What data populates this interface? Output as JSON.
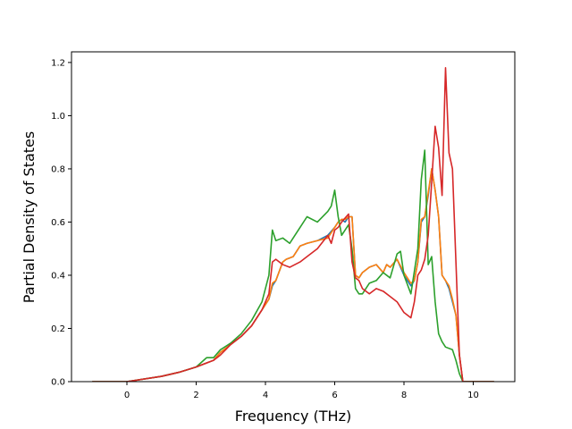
{
  "chart_data": {
    "type": "line",
    "xlabel": "Frequency (THz)",
    "ylabel": "Partial Density of States",
    "xlim": [
      -1.6,
      11.2
    ],
    "ylim": [
      0.0,
      1.24
    ],
    "xticks": [
      0,
      2,
      4,
      6,
      8,
      10
    ],
    "xtick_labels": [
      "0",
      "2",
      "4",
      "6",
      "8",
      "10"
    ],
    "yticks": [
      0.0,
      0.2,
      0.4,
      0.6,
      0.8,
      1.0,
      1.2
    ],
    "ytick_labels": [
      "0.0",
      "0.2",
      "0.4",
      "0.6",
      "0.8",
      "1.0",
      "1.2"
    ],
    "grid": false,
    "series": [
      {
        "color": "#1f77b4",
        "x": [
          -1.0,
          0.0,
          1.0,
          1.5,
          2.0,
          2.3,
          2.5,
          2.7,
          3.0,
          3.3,
          3.6,
          3.9,
          4.1,
          4.2,
          4.3,
          4.5,
          4.6,
          4.8,
          5.0,
          5.2,
          5.5,
          5.8,
          6.0,
          6.1,
          6.2,
          6.3,
          6.4,
          6.5,
          6.6,
          6.7,
          6.8,
          7.0,
          7.2,
          7.4,
          7.5,
          7.6,
          7.8,
          8.0,
          8.2,
          8.3,
          8.4,
          8.5,
          8.6,
          8.7,
          8.8,
          8.9,
          9.0,
          9.1,
          9.2,
          9.3,
          9.4,
          9.5,
          9.6,
          9.7,
          9.8,
          10.6
        ],
        "y": [
          0.0,
          0.0,
          0.02,
          0.035,
          0.055,
          0.07,
          0.08,
          0.11,
          0.14,
          0.17,
          0.21,
          0.27,
          0.31,
          0.36,
          0.38,
          0.45,
          0.46,
          0.47,
          0.51,
          0.52,
          0.53,
          0.55,
          0.58,
          0.6,
          0.61,
          0.6,
          0.62,
          0.62,
          0.4,
          0.39,
          0.41,
          0.43,
          0.44,
          0.41,
          0.44,
          0.43,
          0.46,
          0.4,
          0.36,
          0.38,
          0.45,
          0.6,
          0.62,
          0.7,
          0.8,
          0.72,
          0.62,
          0.4,
          0.38,
          0.35,
          0.3,
          0.25,
          0.1,
          0.0,
          0.0,
          0.0
        ]
      },
      {
        "color": "#ff7f0e",
        "x": [
          -1.0,
          0.0,
          1.0,
          1.5,
          2.0,
          2.3,
          2.5,
          2.7,
          3.0,
          3.3,
          3.6,
          3.9,
          4.1,
          4.2,
          4.3,
          4.5,
          4.6,
          4.8,
          5.0,
          5.2,
          5.5,
          5.8,
          6.0,
          6.1,
          6.2,
          6.3,
          6.4,
          6.5,
          6.6,
          6.7,
          6.8,
          7.0,
          7.2,
          7.4,
          7.5,
          7.6,
          7.8,
          8.0,
          8.2,
          8.3,
          8.4,
          8.5,
          8.6,
          8.7,
          8.8,
          8.9,
          9.0,
          9.1,
          9.2,
          9.3,
          9.4,
          9.5,
          9.6,
          9.7,
          9.8,
          10.6
        ],
        "y": [
          0.0,
          0.0,
          0.02,
          0.035,
          0.055,
          0.07,
          0.08,
          0.11,
          0.14,
          0.17,
          0.21,
          0.27,
          0.31,
          0.37,
          0.38,
          0.45,
          0.46,
          0.47,
          0.51,
          0.52,
          0.53,
          0.54,
          0.58,
          0.6,
          0.61,
          0.61,
          0.62,
          0.62,
          0.4,
          0.39,
          0.41,
          0.43,
          0.44,
          0.41,
          0.44,
          0.43,
          0.46,
          0.41,
          0.37,
          0.38,
          0.45,
          0.61,
          0.62,
          0.71,
          0.8,
          0.72,
          0.62,
          0.4,
          0.38,
          0.36,
          0.31,
          0.25,
          0.1,
          0.0,
          0.0,
          0.0
        ]
      },
      {
        "color": "#2ca02c",
        "x": [
          -1.0,
          0.0,
          1.0,
          1.5,
          2.0,
          2.3,
          2.5,
          2.7,
          3.0,
          3.3,
          3.6,
          3.9,
          4.1,
          4.2,
          4.3,
          4.5,
          4.7,
          5.0,
          5.2,
          5.5,
          5.8,
          5.9,
          6.0,
          6.1,
          6.2,
          6.4,
          6.5,
          6.6,
          6.7,
          6.8,
          7.0,
          7.2,
          7.4,
          7.6,
          7.8,
          7.9,
          8.0,
          8.2,
          8.4,
          8.5,
          8.6,
          8.7,
          8.8,
          8.9,
          9.0,
          9.1,
          9.2,
          9.4,
          9.5,
          9.6,
          9.7,
          9.8,
          10.6
        ],
        "y": [
          0.0,
          0.0,
          0.02,
          0.035,
          0.055,
          0.09,
          0.09,
          0.12,
          0.145,
          0.18,
          0.23,
          0.3,
          0.4,
          0.57,
          0.53,
          0.54,
          0.52,
          0.58,
          0.62,
          0.6,
          0.64,
          0.66,
          0.72,
          0.62,
          0.55,
          0.59,
          0.5,
          0.35,
          0.33,
          0.33,
          0.37,
          0.38,
          0.41,
          0.39,
          0.48,
          0.49,
          0.4,
          0.33,
          0.5,
          0.76,
          0.87,
          0.44,
          0.47,
          0.3,
          0.18,
          0.15,
          0.13,
          0.12,
          0.08,
          0.03,
          0.0,
          0.0,
          0.0
        ]
      },
      {
        "color": "#d62728",
        "x": [
          -1.0,
          0.0,
          1.0,
          1.5,
          2.0,
          2.3,
          2.5,
          2.7,
          3.0,
          3.3,
          3.6,
          3.9,
          4.1,
          4.2,
          4.3,
          4.5,
          4.7,
          5.0,
          5.2,
          5.5,
          5.8,
          5.9,
          6.0,
          6.1,
          6.2,
          6.4,
          6.5,
          6.6,
          6.7,
          6.8,
          7.0,
          7.2,
          7.4,
          7.6,
          7.8,
          8.0,
          8.2,
          8.3,
          8.4,
          8.5,
          8.6,
          8.7,
          8.8,
          8.9,
          9.0,
          9.1,
          9.2,
          9.3,
          9.4,
          9.5,
          9.6,
          9.7,
          9.8,
          10.6
        ],
        "y": [
          0.0,
          0.0,
          0.02,
          0.035,
          0.055,
          0.07,
          0.08,
          0.1,
          0.14,
          0.17,
          0.21,
          0.27,
          0.33,
          0.45,
          0.46,
          0.44,
          0.43,
          0.45,
          0.47,
          0.5,
          0.55,
          0.52,
          0.57,
          0.58,
          0.6,
          0.63,
          0.45,
          0.39,
          0.38,
          0.35,
          0.33,
          0.35,
          0.34,
          0.32,
          0.3,
          0.26,
          0.24,
          0.3,
          0.4,
          0.42,
          0.46,
          0.55,
          0.75,
          0.96,
          0.88,
          0.7,
          1.18,
          0.86,
          0.8,
          0.45,
          0.1,
          0.0,
          0.0,
          0.0
        ]
      }
    ]
  }
}
